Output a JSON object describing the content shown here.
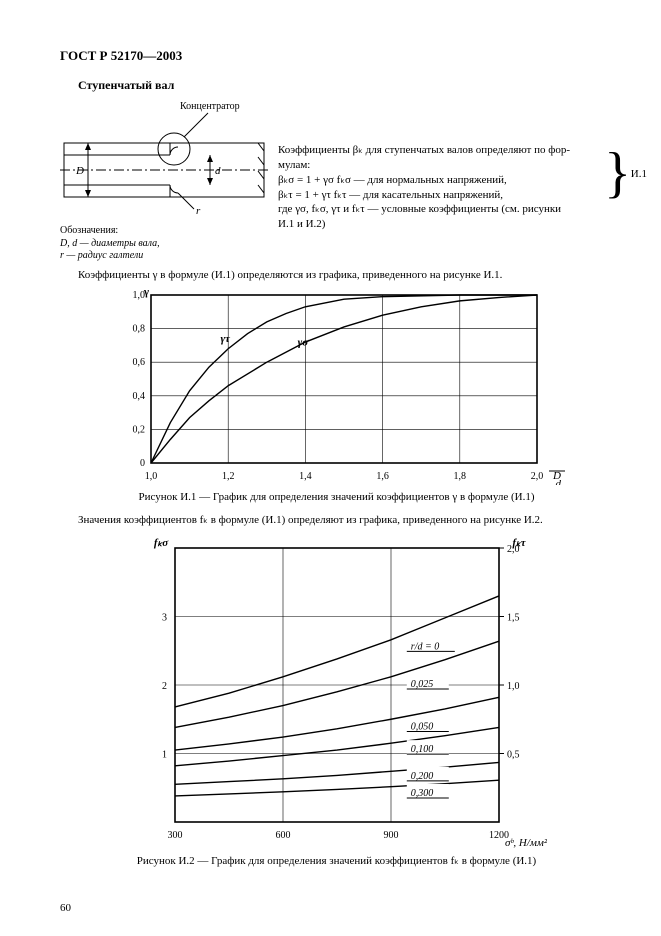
{
  "header": "ГОСТ Р 52170—2003",
  "section_title": "Ступенчатый вал",
  "diagram": {
    "callout": "Концентратор",
    "D_label": "D",
    "d_label": "d",
    "r_label": "r",
    "legend_title": "Обозначения:",
    "legend_line1": "D, d — диаметры вала,",
    "legend_line2": "r — радиус галтели"
  },
  "formula_block": {
    "line1": "Коэффициенты βₖ для ступенчатых валов определяют по фор-",
    "line2": "мулам:",
    "line3": "βₖσ = 1 + γσ fₖσ — для нормальных напряжений,",
    "line4": "βₖτ = 1 + γτ fₖτ — для касательных напряжений,",
    "line5": "где γσ, fₖσ, γτ и fₖτ — условные коэффициенты (см. рисунки",
    "line6": "И.1 и И.2)",
    "eq_num": "И.1"
  },
  "para1": "Коэффициенты γ в формуле (И.1) определяются из графика, приведенного на рисунке И.1.",
  "chart1": {
    "type": "line",
    "xlim": [
      1.0,
      2.0
    ],
    "ylim": [
      0,
      1.0
    ],
    "xticks": [
      1.0,
      1.2,
      1.4,
      1.6,
      1.8,
      2.0
    ],
    "xtick_labels": [
      "1,0",
      "1,2",
      "1,4",
      "1,6",
      "1,8",
      "2,0"
    ],
    "yticks": [
      0,
      0.2,
      0.4,
      0.6,
      0.8,
      1.0
    ],
    "ytick_labels": [
      "0",
      "0,2",
      "0,4",
      "0,6",
      "0,8",
      "1,0"
    ],
    "ylabel": "γ",
    "xlabel": "D/d",
    "grid_color": "#000000",
    "line_color": "#000000",
    "line_width": 1.4,
    "background_color": "#ffffff",
    "series": [
      {
        "label": "γτ",
        "label_x": 1.18,
        "label_y": 0.72,
        "pts": [
          [
            1.0,
            0
          ],
          [
            1.05,
            0.24
          ],
          [
            1.1,
            0.43
          ],
          [
            1.15,
            0.57
          ],
          [
            1.2,
            0.68
          ],
          [
            1.25,
            0.77
          ],
          [
            1.3,
            0.84
          ],
          [
            1.35,
            0.89
          ],
          [
            1.4,
            0.93
          ],
          [
            1.5,
            0.975
          ],
          [
            1.6,
            0.99
          ],
          [
            1.8,
            1.0
          ],
          [
            2.0,
            1.0
          ]
        ]
      },
      {
        "label": "γσ",
        "label_x": 1.38,
        "label_y": 0.7,
        "pts": [
          [
            1.0,
            0
          ],
          [
            1.05,
            0.14
          ],
          [
            1.1,
            0.27
          ],
          [
            1.15,
            0.37
          ],
          [
            1.2,
            0.46
          ],
          [
            1.3,
            0.6
          ],
          [
            1.4,
            0.72
          ],
          [
            1.5,
            0.81
          ],
          [
            1.6,
            0.88
          ],
          [
            1.7,
            0.93
          ],
          [
            1.8,
            0.965
          ],
          [
            1.9,
            0.985
          ],
          [
            2.0,
            1.0
          ]
        ]
      }
    ],
    "label_fontsize": 11,
    "tick_fontsize": 10
  },
  "caption1": "Рисунок И.1 — График для определения значений коэффициентов γ в формуле (И.1)",
  "para2": "Значения коэффициентов fₖ в формуле (И.1) определяют из графика, приведенного на рисунке И.2.",
  "chart2": {
    "type": "line",
    "xlim": [
      300,
      1200
    ],
    "ylim_left": [
      0,
      4
    ],
    "ylim_right": [
      0,
      2.0
    ],
    "xticks": [
      300,
      600,
      900,
      1200
    ],
    "xtick_labels": [
      "300",
      "600",
      "900",
      "1200"
    ],
    "yticks_left": [
      0,
      1,
      2,
      3,
      4
    ],
    "ytick_labels_left": [
      "",
      "1",
      "2",
      "3",
      ""
    ],
    "yticks_right": [
      0.5,
      1.0,
      1.5,
      2.0
    ],
    "ytick_labels_right": [
      "0,5",
      "1,0",
      "1,5",
      "2,0"
    ],
    "y_left_label": "fₖσ",
    "y_right_label": "fₖτ",
    "xlabel": "σᵇ, Н/мм²",
    "grid_color": "#000000",
    "line_color": "#000000",
    "line_width": 1.4,
    "series": [
      {
        "label": "r/d = 0",
        "label_x": 955,
        "label_y": 2.52,
        "pts": [
          [
            300,
            1.68
          ],
          [
            450,
            1.88
          ],
          [
            600,
            2.12
          ],
          [
            750,
            2.38
          ],
          [
            900,
            2.66
          ],
          [
            1050,
            2.98
          ],
          [
            1200,
            3.3
          ]
        ]
      },
      {
        "label": "0,025",
        "label_x": 955,
        "label_y": 1.97,
        "pts": [
          [
            300,
            1.38
          ],
          [
            450,
            1.53
          ],
          [
            600,
            1.7
          ],
          [
            750,
            1.9
          ],
          [
            900,
            2.12
          ],
          [
            1050,
            2.37
          ],
          [
            1200,
            2.64
          ]
        ]
      },
      {
        "label": "0,050",
        "label_x": 955,
        "label_y": 1.35,
        "pts": [
          [
            300,
            1.05
          ],
          [
            450,
            1.14
          ],
          [
            600,
            1.24
          ],
          [
            750,
            1.36
          ],
          [
            900,
            1.5
          ],
          [
            1050,
            1.65
          ],
          [
            1200,
            1.82
          ]
        ]
      },
      {
        "label": "0,100",
        "label_x": 955,
        "label_y": 1.02,
        "pts": [
          [
            300,
            0.82
          ],
          [
            450,
            0.89
          ],
          [
            600,
            0.97
          ],
          [
            750,
            1.05
          ],
          [
            900,
            1.15
          ],
          [
            1050,
            1.26
          ],
          [
            1200,
            1.38
          ]
        ]
      },
      {
        "label": "0,200",
        "label_x": 955,
        "label_y": 0.63,
        "pts": [
          [
            300,
            0.55
          ],
          [
            450,
            0.59
          ],
          [
            600,
            0.63
          ],
          [
            750,
            0.68
          ],
          [
            900,
            0.74
          ],
          [
            1050,
            0.8
          ],
          [
            1200,
            0.87
          ]
        ]
      },
      {
        "label": "0,300",
        "label_x": 955,
        "label_y": 0.38,
        "pts": [
          [
            300,
            0.38
          ],
          [
            450,
            0.41
          ],
          [
            600,
            0.44
          ],
          [
            750,
            0.475
          ],
          [
            900,
            0.515
          ],
          [
            1050,
            0.56
          ],
          [
            1200,
            0.61
          ]
        ]
      }
    ],
    "param_header": "r/d = 0",
    "tick_fontsize": 10,
    "label_fontsize": 11
  },
  "caption2": "Рисунок И.2 — График для определения значений коэффициентов fₖ в формуле (И.1)",
  "page_number": "60"
}
